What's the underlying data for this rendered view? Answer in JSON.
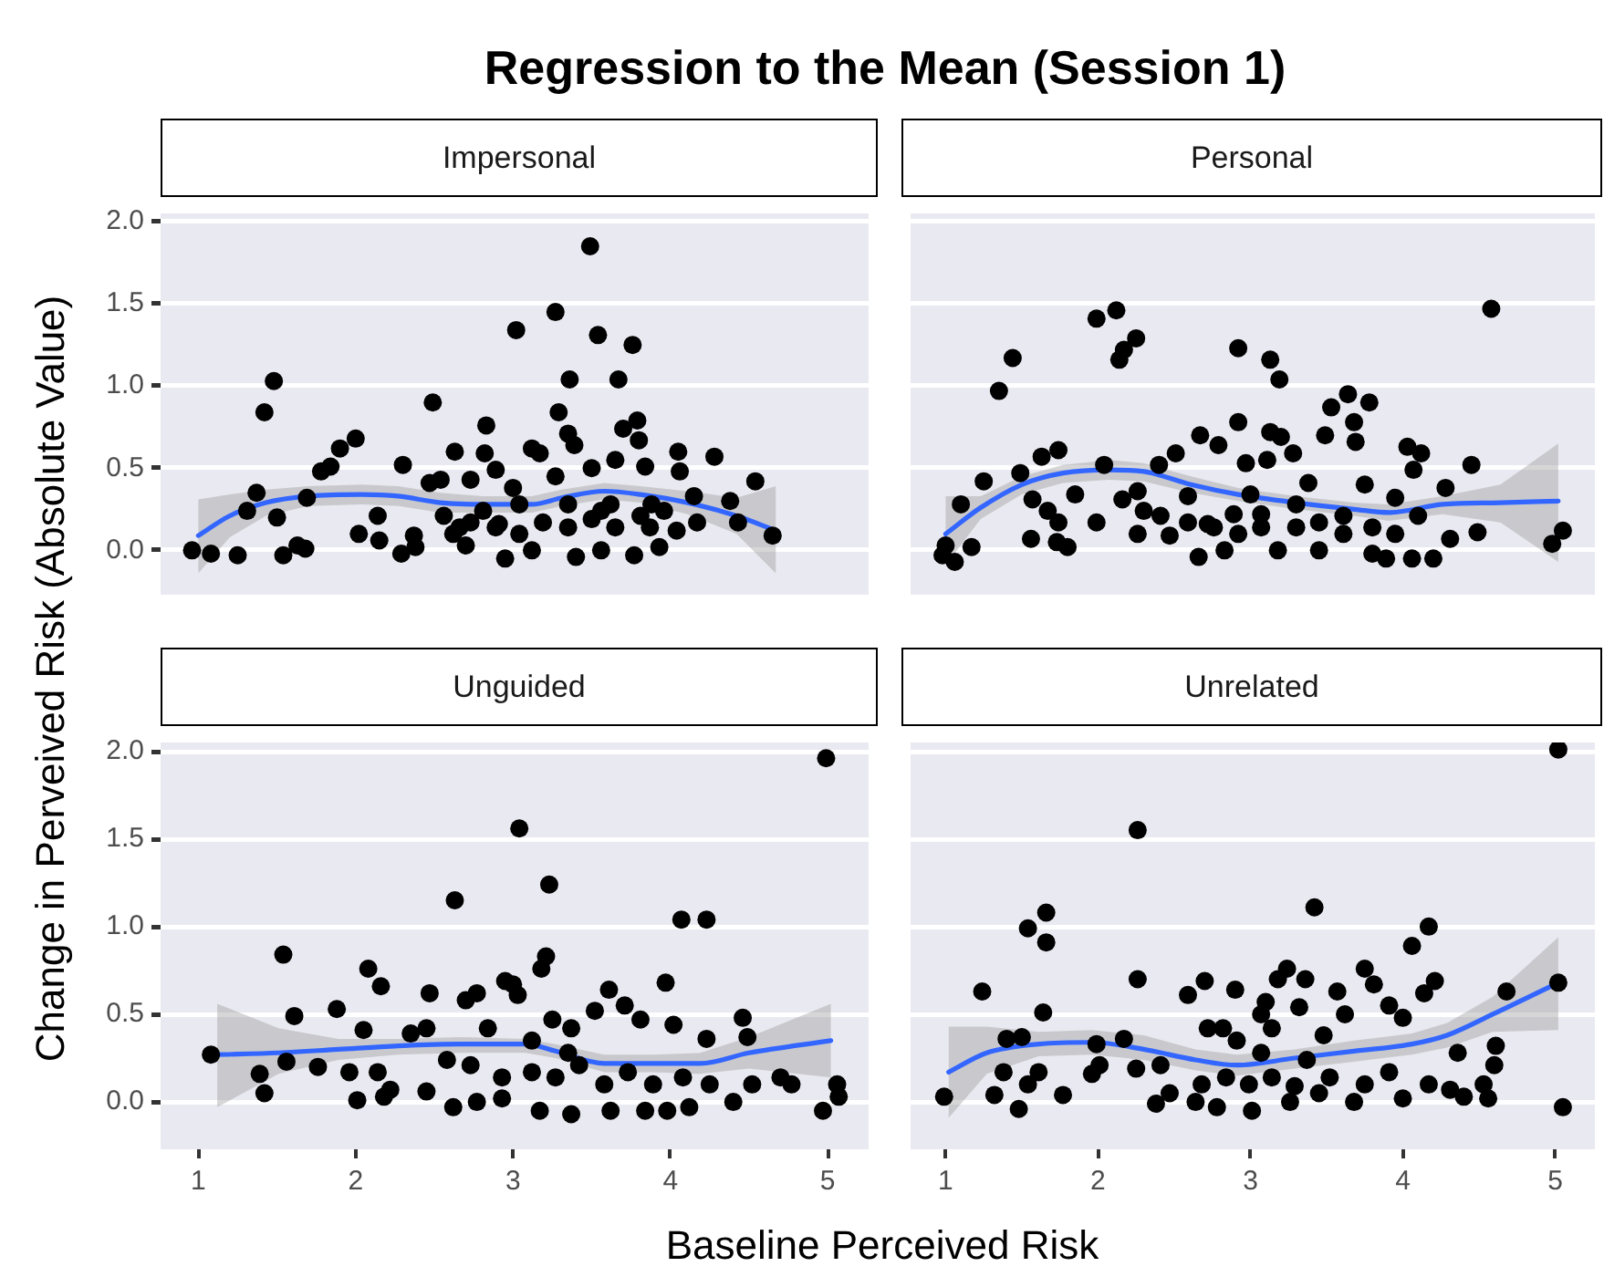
{
  "chart_data": [
    {
      "type": "scatter",
      "title": "Regression to the Mean (Session 1)",
      "xlabel": "Baseline Perceived Risk",
      "ylabel": "Change in Perveived Risk (Absolute Value)",
      "subtitle": "Impersonal",
      "xlim": [
        0.76,
        5.26
      ],
      "ylim": [
        -0.27,
        2.05
      ],
      "xticks": [
        1,
        2,
        3,
        4,
        5
      ],
      "yticks": [
        {
          "value": 0,
          "label": "0.0"
        },
        {
          "value": 0.5,
          "label": "0.5"
        },
        {
          "value": 1,
          "label": "1.0"
        },
        {
          "value": 1.5,
          "label": "1.5"
        },
        {
          "value": 2,
          "label": "2.0"
        }
      ],
      "grid": "y",
      "tick_labels": "y",
      "series": [
        {
          "type": "scatter",
          "color": "#000000",
          "marker": "circle",
          "x": [
            0.96,
            1.08,
            1.25,
            1.42,
            1.48,
            1.37,
            1.31,
            1.5,
            1.54,
            1.63,
            1.68,
            1.69,
            1.78,
            1.84,
            1.9,
            2.0,
            2.02,
            2.15,
            2.14,
            2.3,
            2.29,
            2.38,
            2.37,
            2.49,
            2.47,
            2.54,
            2.63,
            2.56,
            2.62,
            2.7,
            2.73,
            2.83,
            2.82,
            2.89,
            2.91,
            2.95,
            3.0,
            3.02,
            3.04,
            3.12,
            3.17,
            3.12,
            3.27,
            3.27,
            3.29,
            3.35,
            3.39,
            3.36,
            3.4,
            3.49,
            3.5,
            3.54,
            3.56,
            3.56,
            3.65,
            3.67,
            3.7,
            3.76,
            3.79,
            3.8,
            3.77,
            3.84,
            3.87,
            3.93,
            4.04,
            4.05,
            4.06,
            4.17,
            4.15,
            4.28,
            4.38,
            4.43,
            4.54,
            4.65,
            2.73,
            2.89,
            3.19,
            3.35,
            3.5,
            3.65,
            3.81,
            3.96,
            2.66,
            2.81,
            3.04,
            3.35,
            3.62,
            3.88
          ],
          "values": [
            0.0,
            -0.02,
            -0.03,
            0.84,
            1.03,
            0.35,
            0.24,
            0.2,
            -0.03,
            0.03,
            0.01,
            0.32,
            0.48,
            0.51,
            0.62,
            0.68,
            0.1,
            0.06,
            0.21,
            0.52,
            -0.02,
            0.02,
            0.09,
            0.9,
            0.41,
            0.43,
            0.6,
            0.21,
            0.1,
            0.03,
            0.43,
            0.76,
            0.59,
            0.49,
            0.16,
            -0.05,
            0.38,
            1.34,
            0.1,
            0.62,
            0.59,
            0.0,
            1.45,
            0.45,
            0.84,
            0.71,
            0.64,
            1.04,
            -0.04,
            1.85,
            0.5,
            1.31,
            0.24,
            0.0,
            0.55,
            1.04,
            0.74,
            1.25,
            0.79,
            0.67,
            -0.03,
            0.51,
            0.14,
            0.02,
            0.12,
            0.6,
            0.48,
            0.17,
            0.33,
            0.57,
            0.3,
            0.17,
            0.42,
            0.09,
            0.17,
            0.14,
            0.17,
            0.14,
            0.19,
            0.14,
            0.21,
            0.24,
            0.14,
            0.24,
            0.28,
            0.28,
            0.28,
            0.28
          ]
        },
        {
          "type": "line",
          "color": "#3366ff",
          "marker": "none",
          "x": [
            1.0,
            1.2,
            1.43,
            1.7,
            2.04,
            2.27,
            2.54,
            2.81,
            3.12,
            3.31,
            3.58,
            3.81,
            4.11,
            4.42,
            4.67
          ],
          "values": [
            0.09,
            0.21,
            0.29,
            0.33,
            0.34,
            0.33,
            0.29,
            0.28,
            0.28,
            0.32,
            0.36,
            0.34,
            0.29,
            0.21,
            0.12
          ],
          "lower": [
            -0.14,
            0.08,
            0.21,
            0.27,
            0.28,
            0.27,
            0.23,
            0.23,
            0.23,
            0.27,
            0.31,
            0.29,
            0.22,
            0.1,
            -0.14
          ],
          "upper": [
            0.31,
            0.34,
            0.37,
            0.39,
            0.4,
            0.39,
            0.35,
            0.33,
            0.33,
            0.37,
            0.41,
            0.39,
            0.36,
            0.32,
            0.39
          ]
        }
      ]
    },
    {
      "type": "scatter",
      "subtitle": "Personal",
      "xlim": [
        0.77,
        5.26
      ],
      "ylim": [
        -0.27,
        2.05
      ],
      "xticks": [
        1,
        2,
        3,
        4,
        5
      ],
      "yticks": [
        0,
        0.5,
        1,
        1.5,
        2
      ],
      "grid": "y",
      "tick_labels": false,
      "series": [
        {
          "type": "scatter",
          "color": "#000000",
          "marker": "circle",
          "x": [
            0.98,
            1.06,
            1.0,
            1.17,
            1.1,
            1.25,
            1.35,
            1.44,
            1.49,
            1.57,
            1.56,
            1.63,
            1.74,
            1.67,
            1.74,
            1.73,
            1.8,
            1.85,
            1.99,
            2.12,
            1.99,
            2.14,
            2.17,
            2.25,
            2.04,
            2.16,
            2.26,
            2.26,
            2.3,
            2.4,
            2.41,
            2.47,
            2.51,
            2.59,
            2.59,
            2.66,
            2.67,
            2.79,
            2.72,
            2.83,
            2.92,
            2.92,
            2.89,
            2.97,
            3.07,
            3.13,
            3.19,
            3.13,
            3.2,
            3.11,
            3.28,
            3.18,
            3.3,
            3.38,
            3.45,
            3.49,
            3.53,
            3.64,
            3.78,
            3.68,
            3.69,
            3.61,
            3.75,
            3.8,
            3.89,
            3.95,
            4.03,
            4.12,
            4.07,
            4.06,
            4.2,
            4.28,
            4.31,
            4.45,
            4.49,
            4.58,
            4.98,
            5.05,
            2.92,
            3.07,
            3.3,
            3.45,
            3.61,
            3.8,
            3.95,
            4.1,
            2.76,
            3.0
          ],
          "values": [
            -0.03,
            -0.07,
            0.03,
            0.02,
            0.28,
            0.42,
            0.97,
            1.17,
            0.47,
            0.31,
            0.07,
            0.57,
            0.61,
            0.24,
            0.17,
            0.05,
            0.02,
            0.34,
            1.41,
            1.46,
            0.17,
            1.16,
            1.22,
            1.29,
            0.52,
            0.31,
            0.36,
            0.1,
            0.24,
            0.52,
            0.21,
            0.09,
            0.59,
            0.17,
            0.33,
            -0.04,
            0.7,
            0.64,
            0.16,
            0.0,
            1.23,
            0.78,
            0.22,
            0.53,
            0.14,
            1.16,
            1.04,
            0.72,
            0.69,
            0.55,
            0.59,
            0.0,
            0.28,
            0.41,
            0.0,
            0.7,
            0.87,
            0.95,
            0.9,
            0.78,
            0.66,
            0.1,
            0.4,
            -0.02,
            -0.05,
            0.32,
            0.63,
            0.59,
            0.49,
            -0.05,
            -0.05,
            0.38,
            0.07,
            0.52,
            0.11,
            1.47,
            0.04,
            0.12,
            0.1,
            0.22,
            0.14,
            0.17,
            0.21,
            0.14,
            0.1,
            0.21,
            0.14,
            0.34
          ]
        },
        {
          "type": "line",
          "color": "#3366ff",
          "marker": "none",
          "x": [
            1.0,
            1.23,
            1.5,
            1.77,
            2.07,
            2.3,
            2.61,
            2.92,
            3.3,
            3.68,
            3.91,
            4.26,
            4.64,
            5.02
          ],
          "values": [
            0.1,
            0.26,
            0.4,
            0.47,
            0.49,
            0.48,
            0.4,
            0.34,
            0.29,
            0.25,
            0.23,
            0.28,
            0.29,
            0.3
          ],
          "lower": [
            -0.09,
            0.19,
            0.34,
            0.41,
            0.43,
            0.42,
            0.35,
            0.3,
            0.25,
            0.21,
            0.18,
            0.22,
            0.17,
            -0.07
          ],
          "upper": [
            0.33,
            0.33,
            0.45,
            0.52,
            0.55,
            0.53,
            0.45,
            0.38,
            0.33,
            0.29,
            0.28,
            0.33,
            0.4,
            0.65
          ]
        }
      ]
    },
    {
      "type": "scatter",
      "subtitle": "Unguided",
      "xlim": [
        0.76,
        5.26
      ],
      "ylim": [
        -0.27,
        2.05
      ],
      "xticks": [
        1,
        2,
        3,
        4,
        5
      ],
      "yticks": [
        {
          "value": 0,
          "label": "0.0"
        },
        {
          "value": 0.5,
          "label": "0.5"
        },
        {
          "value": 1,
          "label": "1.0"
        },
        {
          "value": 1.5,
          "label": "1.5"
        },
        {
          "value": 2,
          "label": "2.0"
        }
      ],
      "grid": "y",
      "series": [
        {
          "type": "scatter",
          "color": "#000000",
          "marker": "circle",
          "x": [
            1.08,
            1.39,
            1.42,
            1.54,
            1.61,
            1.56,
            1.76,
            1.88,
            1.96,
            2.01,
            2.05,
            2.08,
            2.16,
            2.14,
            2.18,
            2.22,
            2.35,
            2.45,
            2.45,
            2.47,
            2.63,
            2.62,
            2.7,
            2.77,
            2.77,
            2.84,
            2.93,
            2.95,
            3.0,
            3.03,
            3.04,
            3.17,
            3.18,
            3.21,
            3.23,
            3.25,
            3.37,
            3.37,
            3.52,
            3.61,
            3.71,
            3.62,
            3.81,
            3.84,
            3.97,
            3.98,
            4.02,
            4.07,
            4.12,
            4.23,
            4.23,
            4.25,
            4.4,
            4.46,
            4.49,
            4.52,
            4.7,
            4.77,
            4.99,
            4.97,
            5.06,
            5.07,
            2.73,
            2.93,
            3.12,
            3.27,
            3.42,
            3.58,
            3.73,
            3.89,
            4.08,
            2.58,
            3.12,
            3.35
          ],
          "values": [
            0.27,
            0.16,
            0.05,
            0.84,
            0.49,
            0.23,
            0.2,
            0.53,
            0.17,
            0.01,
            0.41,
            0.76,
            0.66,
            0.17,
            0.03,
            0.07,
            0.39,
            0.42,
            0.06,
            0.62,
            1.15,
            -0.03,
            0.58,
            0.62,
            0.0,
            0.42,
            0.02,
            0.69,
            0.67,
            0.61,
            1.56,
            -0.05,
            0.76,
            0.83,
            1.24,
            0.47,
            -0.07,
            0.42,
            0.52,
            0.64,
            0.55,
            -0.05,
            0.47,
            -0.05,
            0.68,
            -0.05,
            0.44,
            1.04,
            -0.03,
            1.04,
            0.36,
            0.1,
            0.0,
            0.48,
            0.37,
            0.1,
            0.14,
            0.1,
            1.96,
            -0.05,
            0.1,
            0.03,
            0.21,
            0.14,
            0.17,
            0.14,
            0.21,
            0.1,
            0.17,
            0.1,
            0.14,
            0.24,
            0.35,
            0.28
          ]
        },
        {
          "type": "line",
          "color": "#3366ff",
          "marker": "none",
          "x": [
            1.12,
            1.51,
            1.89,
            2.27,
            2.66,
            3.08,
            3.27,
            3.58,
            3.89,
            4.19,
            4.5,
            5.02
          ],
          "values": [
            0.27,
            0.28,
            0.3,
            0.32,
            0.33,
            0.33,
            0.29,
            0.22,
            0.22,
            0.22,
            0.28,
            0.35
          ],
          "lower": [
            -0.03,
            0.16,
            0.24,
            0.27,
            0.28,
            0.28,
            0.25,
            0.17,
            0.17,
            0.16,
            0.19,
            0.14
          ],
          "upper": [
            0.56,
            0.42,
            0.36,
            0.36,
            0.37,
            0.36,
            0.33,
            0.27,
            0.27,
            0.28,
            0.37,
            0.56
          ]
        }
      ]
    },
    {
      "type": "scatter",
      "subtitle": "Unrelated",
      "xlim": [
        0.77,
        5.26
      ],
      "ylim": [
        -0.27,
        2.05
      ],
      "xticks": [
        1,
        2,
        3,
        4,
        5
      ],
      "yticks": [
        0,
        0.5,
        1,
        1.5,
        2
      ],
      "grid": "y",
      "tick_labels": "x",
      "series": [
        {
          "type": "scatter",
          "color": "#000000",
          "marker": "circle",
          "x": [
            0.99,
            1.24,
            1.32,
            1.38,
            1.4,
            1.48,
            1.5,
            1.54,
            1.54,
            1.61,
            1.66,
            1.66,
            1.64,
            1.77,
            1.96,
            2.01,
            1.99,
            2.17,
            2.25,
            2.26,
            2.26,
            2.38,
            2.47,
            2.41,
            2.59,
            2.7,
            2.72,
            2.64,
            2.78,
            2.82,
            2.9,
            2.91,
            3.01,
            3.07,
            3.1,
            3.14,
            3.18,
            3.24,
            3.26,
            3.32,
            3.36,
            3.42,
            3.48,
            3.45,
            3.57,
            3.62,
            3.68,
            3.75,
            3.81,
            3.91,
            4.0,
            4.0,
            4.06,
            4.17,
            4.14,
            4.21,
            4.17,
            4.31,
            4.36,
            4.4,
            4.53,
            4.56,
            4.61,
            4.6,
            4.68,
            5.02,
            5.02,
            5.05,
            2.68,
            2.84,
            2.99,
            3.14,
            3.29,
            3.52,
            3.75,
            3.91,
            3.07,
            3.37
          ],
          "values": [
            0.03,
            0.63,
            0.04,
            0.17,
            0.36,
            -0.04,
            0.37,
            0.99,
            0.1,
            0.17,
            1.08,
            0.91,
            0.51,
            0.04,
            0.16,
            0.21,
            0.33,
            0.36,
            0.19,
            1.55,
            0.7,
            -0.01,
            0.05,
            0.21,
            0.61,
            0.69,
            0.42,
            0.0,
            -0.03,
            0.42,
            0.64,
            0.35,
            -0.05,
            0.5,
            0.57,
            0.42,
            0.7,
            0.76,
            0.0,
            0.54,
            0.7,
            1.11,
            0.38,
            0.05,
            0.63,
            0.5,
            0.0,
            0.76,
            0.67,
            0.55,
            0.48,
            0.02,
            0.89,
            1.0,
            0.62,
            0.69,
            0.1,
            0.07,
            0.28,
            0.03,
            0.1,
            0.02,
            0.32,
            0.21,
            0.63,
            2.01,
            0.68,
            -0.03,
            0.1,
            0.14,
            0.1,
            0.14,
            0.09,
            0.14,
            0.1,
            0.17,
            0.28,
            0.24
          ]
        },
        {
          "type": "line",
          "color": "#3366ff",
          "marker": "none",
          "x": [
            1.02,
            1.27,
            1.61,
            1.96,
            2.3,
            2.64,
            2.91,
            3.29,
            3.68,
            4.06,
            4.29,
            4.59,
            5.02
          ],
          "values": [
            0.17,
            0.28,
            0.33,
            0.34,
            0.3,
            0.24,
            0.21,
            0.25,
            0.29,
            0.33,
            0.38,
            0.5,
            0.68
          ],
          "lower": [
            -0.09,
            0.16,
            0.26,
            0.27,
            0.24,
            0.18,
            0.15,
            0.19,
            0.23,
            0.27,
            0.31,
            0.4,
            0.41
          ],
          "upper": [
            0.43,
            0.43,
            0.4,
            0.41,
            0.38,
            0.3,
            0.27,
            0.3,
            0.35,
            0.39,
            0.45,
            0.6,
            0.94
          ]
        }
      ]
    }
  ]
}
